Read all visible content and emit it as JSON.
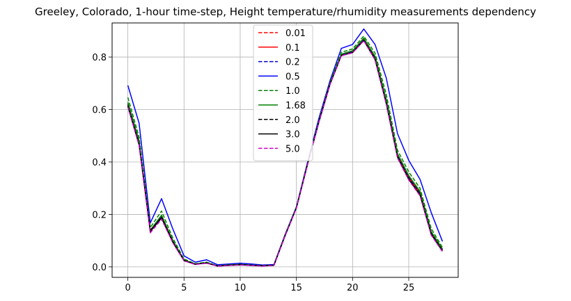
{
  "chart_data": {
    "type": "line",
    "title": "Greeley, Colorado, 1-hour time-step, Height temperature/rhumidity measurements dependency",
    "xlabel": "",
    "ylabel": "",
    "xlim": [
      -1.4,
      29.4
    ],
    "ylim": [
      -0.04,
      0.93
    ],
    "xticks": [
      0,
      5,
      10,
      15,
      20,
      25
    ],
    "yticks": [
      0.0,
      0.2,
      0.4,
      0.6,
      0.8
    ],
    "ytick_labels": [
      "0.0",
      "0.2",
      "0.4",
      "0.6",
      "0.8"
    ],
    "grid": true,
    "legend_position": "upper center",
    "x": [
      0,
      1,
      2,
      3,
      4,
      5,
      6,
      7,
      8,
      9,
      10,
      11,
      12,
      13,
      14,
      15,
      16,
      17,
      18,
      19,
      20,
      21,
      22,
      23,
      24,
      25,
      26,
      27,
      28
    ],
    "series": [
      {
        "name": "0.01",
        "color": "#ff0000",
        "dash": "dashed",
        "values": [
          0.618,
          0.472,
          0.133,
          0.187,
          0.095,
          0.024,
          0.01,
          0.015,
          0.003,
          0.006,
          0.008,
          0.006,
          0.004,
          0.006,
          0.12,
          0.226,
          0.393,
          0.553,
          0.698,
          0.808,
          0.819,
          0.866,
          0.795,
          0.628,
          0.423,
          0.34,
          0.28,
          0.128,
          0.064
        ]
      },
      {
        "name": "0.1",
        "color": "#ff0000",
        "dash": "solid",
        "values": [
          0.62,
          0.473,
          0.134,
          0.189,
          0.096,
          0.024,
          0.01,
          0.015,
          0.003,
          0.006,
          0.008,
          0.006,
          0.004,
          0.006,
          0.12,
          0.226,
          0.393,
          0.553,
          0.698,
          0.808,
          0.82,
          0.867,
          0.797,
          0.63,
          0.425,
          0.342,
          0.282,
          0.13,
          0.065
        ]
      },
      {
        "name": "0.2",
        "color": "#0000cc",
        "dash": "dashed",
        "values": [
          0.622,
          0.475,
          0.135,
          0.191,
          0.097,
          0.025,
          0.011,
          0.016,
          0.003,
          0.007,
          0.009,
          0.006,
          0.004,
          0.006,
          0.121,
          0.227,
          0.394,
          0.554,
          0.699,
          0.809,
          0.821,
          0.868,
          0.799,
          0.633,
          0.428,
          0.345,
          0.285,
          0.132,
          0.066
        ]
      },
      {
        "name": "0.5",
        "color": "#0000ff",
        "dash": "solid",
        "values": [
          0.692,
          0.548,
          0.168,
          0.26,
          0.145,
          0.042,
          0.018,
          0.027,
          0.008,
          0.011,
          0.014,
          0.011,
          0.007,
          0.009,
          0.124,
          0.229,
          0.4,
          0.566,
          0.711,
          0.833,
          0.848,
          0.907,
          0.848,
          0.72,
          0.508,
          0.406,
          0.334,
          0.207,
          0.097
        ]
      },
      {
        "name": "1.0",
        "color": "#008000",
        "dash": "dashed",
        "values": [
          0.646,
          0.495,
          0.15,
          0.213,
          0.11,
          0.03,
          0.012,
          0.018,
          0.004,
          0.008,
          0.01,
          0.007,
          0.005,
          0.007,
          0.122,
          0.228,
          0.396,
          0.558,
          0.704,
          0.818,
          0.831,
          0.88,
          0.815,
          0.657,
          0.445,
          0.362,
          0.3,
          0.146,
          0.074
        ]
      },
      {
        "name": "1.68",
        "color": "#008000",
        "dash": "solid",
        "values": [
          0.628,
          0.481,
          0.14,
          0.197,
          0.1,
          0.026,
          0.011,
          0.016,
          0.004,
          0.007,
          0.009,
          0.006,
          0.004,
          0.006,
          0.121,
          0.226,
          0.394,
          0.555,
          0.7,
          0.811,
          0.824,
          0.872,
          0.803,
          0.638,
          0.432,
          0.348,
          0.288,
          0.135,
          0.068
        ]
      },
      {
        "name": "2.0",
        "color": "#000000",
        "dash": "dashed",
        "values": [
          0.615,
          0.468,
          0.138,
          0.19,
          0.097,
          0.025,
          0.01,
          0.015,
          0.003,
          0.006,
          0.008,
          0.006,
          0.004,
          0.006,
          0.12,
          0.225,
          0.392,
          0.552,
          0.697,
          0.806,
          0.818,
          0.864,
          0.793,
          0.625,
          0.42,
          0.337,
          0.277,
          0.126,
          0.062
        ]
      },
      {
        "name": "3.0",
        "color": "#000000",
        "dash": "solid",
        "values": [
          0.612,
          0.465,
          0.136,
          0.186,
          0.094,
          0.024,
          0.01,
          0.015,
          0.003,
          0.006,
          0.008,
          0.006,
          0.004,
          0.006,
          0.119,
          0.225,
          0.392,
          0.552,
          0.697,
          0.806,
          0.817,
          0.863,
          0.791,
          0.622,
          0.418,
          0.334,
          0.274,
          0.124,
          0.06
        ]
      },
      {
        "name": "5.0",
        "color": "#cc00cc",
        "dash": "dashed",
        "values": [
          0.61,
          0.463,
          0.13,
          0.182,
          0.092,
          0.023,
          0.009,
          0.014,
          0.003,
          0.005,
          0.007,
          0.005,
          0.003,
          0.005,
          0.119,
          0.224,
          0.391,
          0.551,
          0.696,
          0.805,
          0.816,
          0.862,
          0.789,
          0.62,
          0.415,
          0.331,
          0.271,
          0.121,
          0.058
        ]
      }
    ]
  }
}
